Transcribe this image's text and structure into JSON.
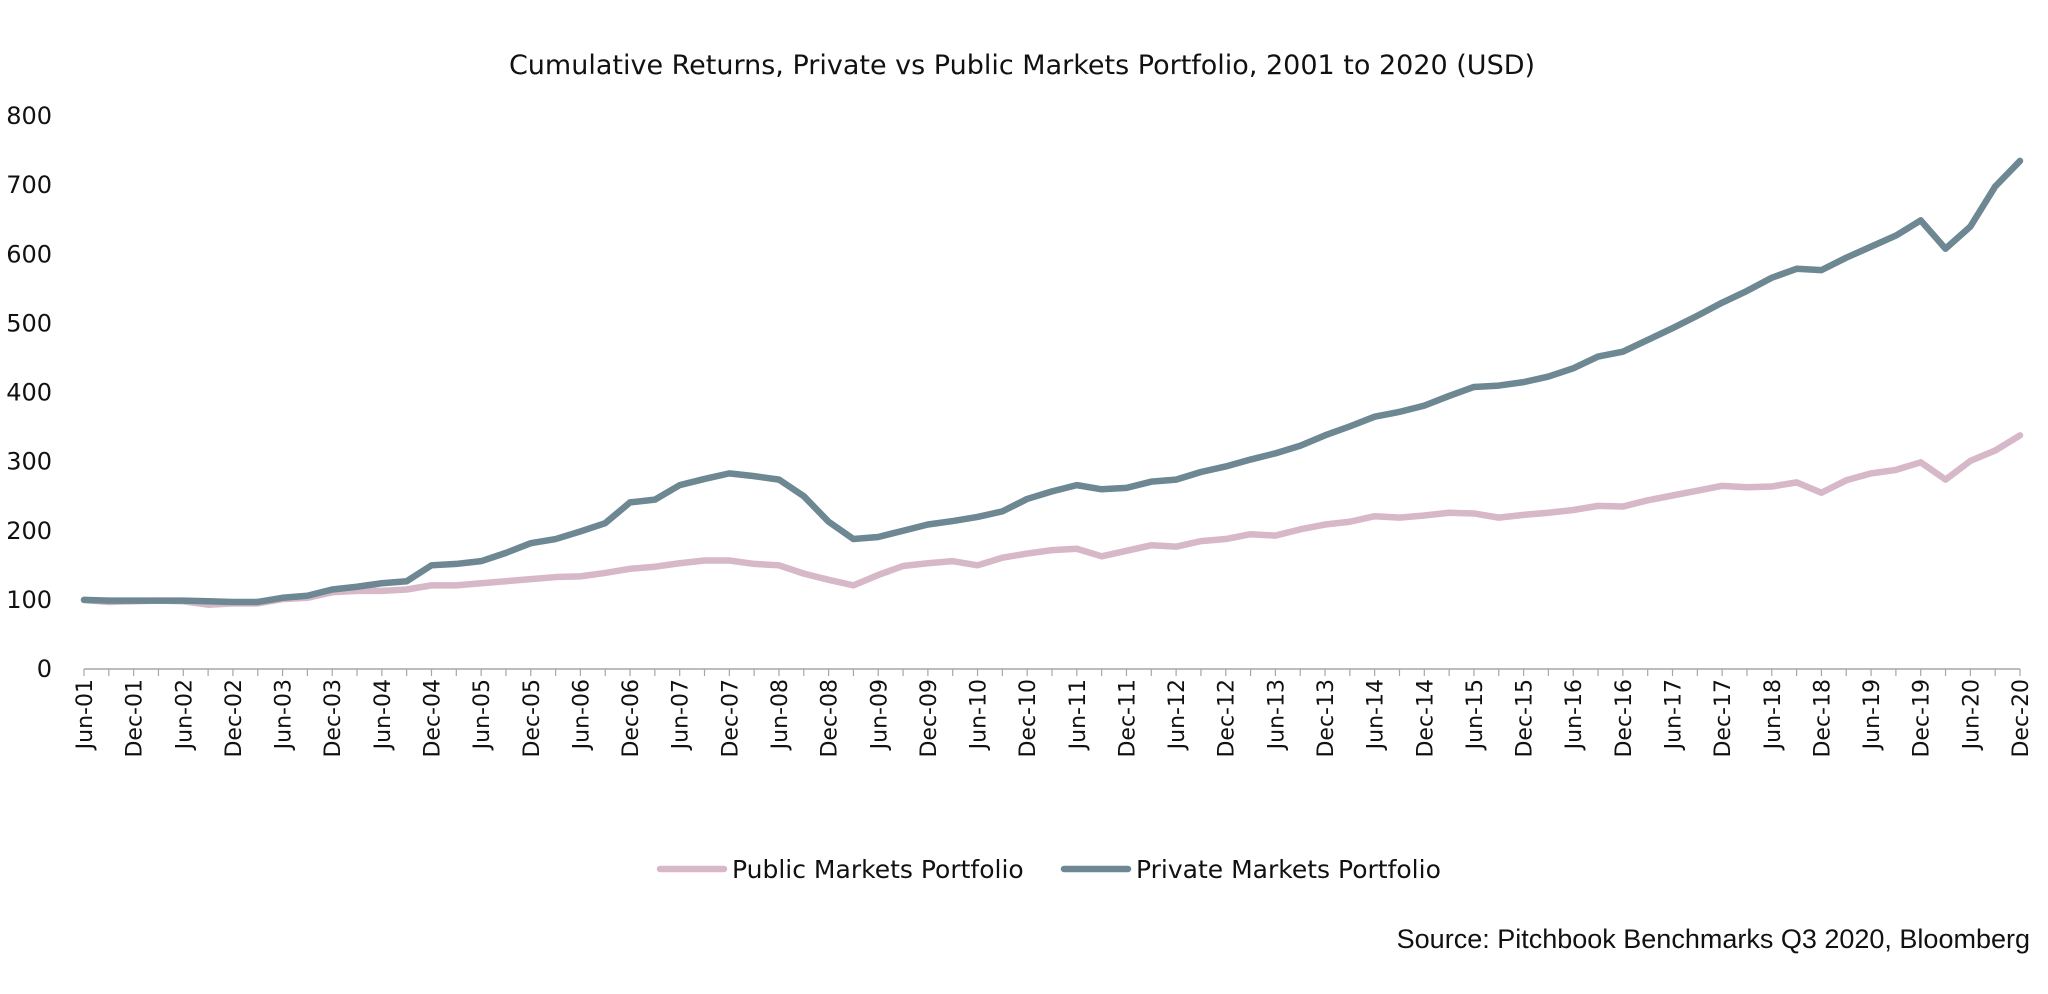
{
  "chart_data": {
    "type": "line",
    "title": "Cumulative Returns, Private vs Public Markets Portfolio, 2001 to 2020 (USD)",
    "xlabel": "",
    "ylabel": "",
    "ylim": [
      0,
      800
    ],
    "yticks": [
      0,
      100,
      200,
      300,
      400,
      500,
      600,
      700,
      800
    ],
    "x_tick_labels": [
      "Jun-01",
      "Dec-01",
      "Jun-02",
      "Dec-02",
      "Jun-03",
      "Dec-03",
      "Jun-04",
      "Dec-04",
      "Jun-05",
      "Dec-05",
      "Jun-06",
      "Dec-06",
      "Jun-07",
      "Dec-07",
      "Jun-08",
      "Dec-08",
      "Jun-09",
      "Dec-09",
      "Jun-10",
      "Dec-10",
      "Jun-11",
      "Dec-11",
      "Jun-12",
      "Dec-12",
      "Jun-13",
      "Dec-13",
      "Jun-14",
      "Dec-14",
      "Jun-15",
      "Dec-15",
      "Jun-16",
      "Dec-16",
      "Jun-17",
      "Dec-17",
      "Jun-18",
      "Dec-18",
      "Jun-19",
      "Dec-19",
      "Jun-20",
      "Dec-20"
    ],
    "x_frequency": "quarterly",
    "grid": false,
    "legend_position": "bottom",
    "series": [
      {
        "name": "Public Markets Portfolio",
        "color": "#d7b8c8",
        "values": [
          100,
          97,
          98,
          99,
          98,
          93,
          95,
          95,
          101,
          103,
          111,
          113,
          113,
          115,
          121,
          121,
          124,
          127,
          130,
          133,
          134,
          139,
          145,
          148,
          153,
          157,
          157,
          152,
          150,
          138,
          129,
          121,
          136,
          149,
          153,
          156,
          150,
          161,
          167,
          172,
          174,
          163,
          171,
          179,
          177,
          185,
          188,
          195,
          193,
          202,
          209,
          213,
          221,
          219,
          222,
          226,
          225,
          219,
          223,
          226,
          230,
          236,
          235,
          244,
          251,
          258,
          265,
          263,
          264,
          270,
          255,
          273,
          283,
          288,
          299,
          274,
          301,
          316,
          338
        ]
      },
      {
        "name": "Private Markets Portfolio",
        "color": "#6d8793",
        "values": [
          100,
          99,
          99,
          99,
          99,
          98,
          97,
          97,
          103,
          106,
          115,
          119,
          124,
          127,
          150,
          152,
          156,
          168,
          182,
          188,
          199,
          211,
          241,
          245,
          266,
          275,
          283,
          279,
          274,
          250,
          213,
          188,
          191,
          200,
          209,
          214,
          220,
          228,
          246,
          257,
          266,
          260,
          262,
          271,
          274,
          285,
          293,
          303,
          312,
          323,
          338,
          351,
          365,
          372,
          381,
          395,
          408,
          410,
          415,
          423,
          435,
          452,
          459,
          476,
          493,
          511,
          530,
          547,
          566,
          579,
          577,
          595,
          611,
          627,
          649,
          608,
          640,
          698,
          735
        ]
      }
    ]
  },
  "source": "Source: Pitchbook Benchmarks Q3 2020, Bloomberg"
}
